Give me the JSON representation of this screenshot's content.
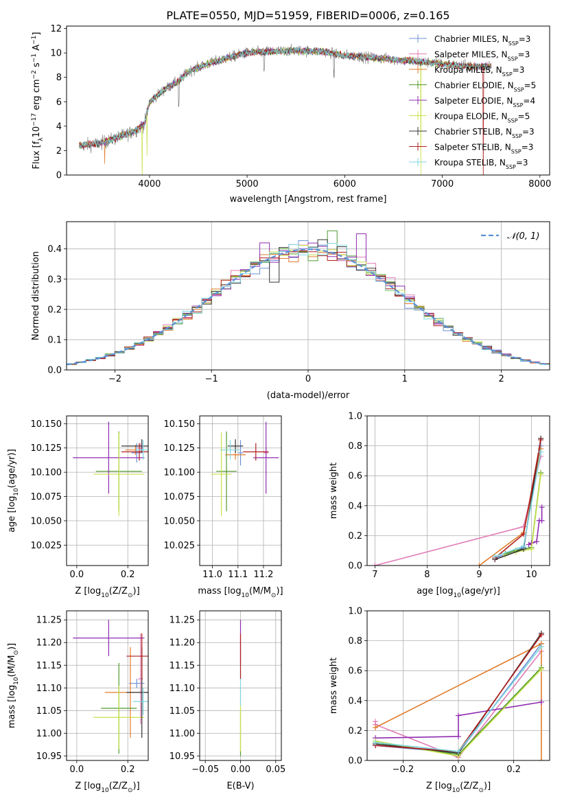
{
  "figure_title": "PLATE=0550, MJD=51959, FIBERID=0006, z=0.165",
  "palette": {
    "chabrier_miles": "#6b8fd6",
    "salpeter_miles": "#e07bb5",
    "kroupa_miles": "#e07b2a",
    "chabrier_elodie": "#4f9a2e",
    "salpeter_elodie": "#8e2bb0",
    "kroupa_elodie": "#c8e04a",
    "chabrier_stelib": "#333333",
    "salpeter_stelib": "#b01c1c",
    "kroupa_stelib": "#7fd6e0",
    "data": "#808080",
    "normal": "#5b8fd6",
    "grid": "#b0b0b0"
  },
  "chart_data": [
    {
      "id": "spectrum",
      "type": "line",
      "xlabel": "wavelength [Angstrom, rest frame]",
      "ylabel": "Flux [f_λ10^-17 erg cm^-2 s^-1 A^-1]",
      "xlim": [
        3150,
        8100
      ],
      "ylim": [
        0,
        12.2
      ],
      "xticks": [
        4000,
        5000,
        6000,
        7000,
        8000
      ],
      "yticks": [
        0,
        2,
        4,
        6,
        8,
        10,
        12
      ],
      "grid": false,
      "legend_position": "top-right",
      "legend": [
        {
          "main": "Chabrier MILES, N",
          "sub": "SSP",
          "tail": "=3",
          "color": "chabrier_miles"
        },
        {
          "main": "Salpeter MILES, N",
          "sub": "SSP",
          "tail": "=3",
          "color": "salpeter_miles"
        },
        {
          "main": "Kroupa MILES, N",
          "sub": "SSP",
          "tail": "=3",
          "color": "kroupa_miles"
        },
        {
          "main": "Chabrier ELODIE, N",
          "sub": "SSP",
          "tail": "=5",
          "color": "chabrier_elodie"
        },
        {
          "main": "Salpeter ELODIE, N",
          "sub": "SSP",
          "tail": "=4",
          "color": "salpeter_elodie"
        },
        {
          "main": "Kroupa ELODIE, N",
          "sub": "SSP",
          "tail": "=5",
          "color": "kroupa_elodie"
        },
        {
          "main": "Chabrier STELIB, N",
          "sub": "SSP",
          "tail": "=3",
          "color": "chabrier_stelib"
        },
        {
          "main": "Salpeter STELIB, N",
          "sub": "SSP",
          "tail": "=3",
          "color": "salpeter_stelib"
        },
        {
          "main": "Kroupa STELIB, N",
          "sub": "SSP",
          "tail": "=3",
          "color": "kroupa_stelib"
        }
      ],
      "continuum": {
        "x": [
          3280,
          3500,
          3650,
          3850,
          3950,
          4000,
          4150,
          4300,
          4400,
          4600,
          4800,
          5000,
          5200,
          5500,
          5800,
          6000,
          6300,
          6600,
          6900,
          7100,
          7300,
          7500
        ],
        "y": [
          2.4,
          2.6,
          3.0,
          3.6,
          4.2,
          6.0,
          7.0,
          7.7,
          8.5,
          9.1,
          9.6,
          10.0,
          10.1,
          10.2,
          10.1,
          9.8,
          9.6,
          9.4,
          9.2,
          9.0,
          8.9,
          8.9
        ]
      },
      "features": [
        {
          "x": 3540,
          "depth": 1.8,
          "model": "kroupa_miles"
        },
        {
          "x": 3925,
          "depth": 5.0,
          "model": "kroupa_elodie"
        },
        {
          "x": 3975,
          "depth": 3.5,
          "model": "kroupa_elodie"
        },
        {
          "x": 4300,
          "depth": 2.0
        },
        {
          "x": 5175,
          "depth": 1.5
        },
        {
          "x": 5890,
          "depth": 1.8
        },
        {
          "x": 6780,
          "depth": 9.8,
          "model": "kroupa_elodie"
        },
        {
          "x": 7420,
          "depth": 9.8,
          "model": "salpeter_stelib"
        }
      ]
    },
    {
      "id": "residuals",
      "type": "line",
      "xlabel": "(data-model)/error",
      "ylabel": "Normed distribution",
      "xlim": [
        -2.5,
        2.5
      ],
      "ylim": [
        0,
        0.49
      ],
      "xticks": [
        -2,
        -1,
        0,
        1,
        2
      ],
      "yticks": [
        0.0,
        0.1,
        0.2,
        0.3,
        0.4
      ],
      "grid": true,
      "legend_position": "top-right",
      "legend_label": "𝒩(0, 1)",
      "bin_width": 0.1,
      "series_order": [
        "chabrier_miles",
        "salpeter_miles",
        "kroupa_miles",
        "chabrier_elodie",
        "salpeter_elodie",
        "kroupa_elodie",
        "chabrier_stelib",
        "salpeter_stelib",
        "kroupa_stelib"
      ],
      "peak_bins": [
        {
          "x": -0.4,
          "y": 0.42,
          "color": "salpeter_elodie"
        },
        {
          "x": 0.3,
          "y": 0.46,
          "color": "chabrier_elodie"
        },
        {
          "x": 0.6,
          "y": 0.45,
          "color": "salpeter_elodie"
        },
        {
          "x": -0.3,
          "y": 0.29,
          "color": "chabrier_stelib"
        },
        {
          "x": 0.5,
          "y": 0.34,
          "color": "chabrier_miles"
        }
      ]
    },
    {
      "id": "z-age",
      "type": "scatter",
      "xlabel": "Z [log10(Z/Z⊙)]",
      "ylabel": "age [log10(age/yr)]",
      "xlim": [
        -0.04,
        0.28
      ],
      "ylim": [
        10.004,
        10.158
      ],
      "xticks": [
        0.0,
        0.2
      ],
      "yticks": [
        10.025,
        10.05,
        10.075,
        10.1,
        10.125,
        10.15
      ],
      "grid": true,
      "points": [
        {
          "model": "chabrier_miles",
          "x": 0.235,
          "xerr": 0.02,
          "y": 10.12,
          "yerr": 0.01
        },
        {
          "model": "salpeter_miles",
          "x": 0.25,
          "xerr": 0.01,
          "y": 10.125,
          "yerr": 0.005
        },
        {
          "model": "kroupa_miles",
          "x": 0.23,
          "xerr": 0.04,
          "y": 10.123,
          "yerr": 0.005
        },
        {
          "model": "chabrier_elodie",
          "x": 0.165,
          "xerr": 0.09,
          "y": 10.101,
          "yerr": 0.041
        },
        {
          "model": "salpeter_elodie",
          "x": 0.125,
          "xerr": 0.14,
          "y": 10.115,
          "yerr": 0.037
        },
        {
          "model": "kroupa_elodie",
          "x": 0.165,
          "xerr": 0.1,
          "y": 10.098,
          "yerr": 0.043
        },
        {
          "model": "chabrier_stelib",
          "x": 0.255,
          "xerr": 0.08,
          "y": 10.127,
          "yerr": 0.007
        },
        {
          "model": "salpeter_stelib",
          "x": 0.245,
          "xerr": 0.07,
          "y": 10.121,
          "yerr": 0.009
        },
        {
          "model": "kroupa_stelib",
          "x": 0.26,
          "xerr": 0.03,
          "y": 10.123,
          "yerr": 0.01
        }
      ]
    },
    {
      "id": "mass-age",
      "type": "scatter",
      "xlabel": "mass [log10(M/M⊙)]",
      "ylabel": "",
      "xlim": [
        10.95,
        11.27
      ],
      "ylim": [
        10.004,
        10.158
      ],
      "xticks": [
        11.0,
        11.1,
        11.2
      ],
      "yticks": [
        10.025,
        10.05,
        10.075,
        10.1,
        10.125,
        10.15
      ],
      "grid": true,
      "points": [
        {
          "model": "chabrier_miles",
          "x": 11.11,
          "xerr": 0.01,
          "y": 10.12,
          "yerr": 0.013
        },
        {
          "model": "salpeter_miles",
          "x": 11.21,
          "xerr": 0.01,
          "y": 10.12,
          "yerr": 0.005
        },
        {
          "model": "kroupa_miles",
          "x": 11.09,
          "xerr": 0.04,
          "y": 10.118,
          "yerr": 0.005
        },
        {
          "model": "chabrier_elodie",
          "x": 11.055,
          "xerr": 0.04,
          "y": 10.101,
          "yerr": 0.041
        },
        {
          "model": "salpeter_elodie",
          "x": 11.21,
          "xerr": 0.05,
          "y": 10.115,
          "yerr": 0.037
        },
        {
          "model": "kroupa_elodie",
          "x": 11.035,
          "xerr": 0.04,
          "y": 10.098,
          "yerr": 0.043
        },
        {
          "model": "chabrier_stelib",
          "x": 11.09,
          "xerr": 0.03,
          "y": 10.127,
          "yerr": 0.007
        },
        {
          "model": "salpeter_stelib",
          "x": 11.17,
          "xerr": 0.05,
          "y": 10.121,
          "yerr": 0.009
        },
        {
          "model": "kroupa_stelib",
          "x": 11.07,
          "xerr": 0.04,
          "y": 10.123,
          "yerr": 0.01
        }
      ]
    },
    {
      "id": "age-weight",
      "type": "line",
      "xlabel": "age [log10(age/yr)]",
      "ylabel": "mass weight",
      "xlim": [
        6.85,
        10.35
      ],
      "ylim": [
        0.0,
        1.0
      ],
      "xticks": [
        7,
        8,
        9,
        10
      ],
      "yticks": [
        0.0,
        0.2,
        0.4,
        0.6,
        0.8,
        1.0
      ],
      "grid": true,
      "series": [
        {
          "model": "chabrier_miles",
          "x": [
            9.3,
            9.85,
            10.18
          ],
          "y": [
            0.05,
            0.12,
            0.8
          ]
        },
        {
          "model": "salpeter_miles",
          "x": [
            7.0,
            9.85,
            10.18
          ],
          "y": [
            0.0,
            0.26,
            0.73
          ]
        },
        {
          "model": "kroupa_miles",
          "x": [
            9.0,
            9.85,
            10.18
          ],
          "y": [
            0.0,
            0.22,
            0.78
          ]
        },
        {
          "model": "chabrier_elodie",
          "x": [
            9.5,
            9.7,
            10.0,
            10.18
          ],
          "y": [
            0.08,
            0.1,
            0.12,
            0.62
          ]
        },
        {
          "model": "salpeter_elodie",
          "x": [
            9.95,
            10.0,
            10.1,
            10.15,
            10.2,
            10.2
          ],
          "y": [
            0.14,
            0.15,
            0.16,
            0.3,
            0.3,
            0.39
          ]
        },
        {
          "model": "kroupa_elodie",
          "x": [
            9.5,
            9.7,
            10.0,
            10.18
          ],
          "y": [
            0.07,
            0.09,
            0.11,
            0.61
          ]
        },
        {
          "model": "chabrier_stelib",
          "x": [
            9.3,
            9.85,
            10.18
          ],
          "y": [
            0.04,
            0.11,
            0.85
          ]
        },
        {
          "model": "salpeter_stelib",
          "x": [
            9.3,
            9.85,
            10.18
          ],
          "y": [
            0.05,
            0.21,
            0.84
          ]
        },
        {
          "model": "kroupa_stelib",
          "x": [
            9.3,
            9.85,
            10.18
          ],
          "y": [
            0.06,
            0.13,
            0.76
          ]
        }
      ]
    },
    {
      "id": "z-mass",
      "type": "scatter",
      "xlabel": "Z [log10(Z/Z⊙)]",
      "ylabel": "mass [log10(M/M⊙)]",
      "xlim": [
        -0.04,
        0.28
      ],
      "ylim": [
        10.94,
        11.27
      ],
      "xticks": [
        0.0,
        0.2
      ],
      "yticks": [
        10.95,
        11.0,
        11.05,
        11.1,
        11.15,
        11.2,
        11.25
      ],
      "grid": true,
      "points": [
        {
          "model": "chabrier_miles",
          "x": 0.235,
          "xerr": 0.03,
          "y": 11.11,
          "yerr": 0.01
        },
        {
          "model": "salpeter_miles",
          "x": 0.25,
          "xerr": 0.01,
          "y": 11.12,
          "yerr": 0.1
        },
        {
          "model": "kroupa_miles",
          "x": 0.21,
          "xerr": 0.1,
          "y": 11.09,
          "yerr": 0.1
        },
        {
          "model": "chabrier_elodie",
          "x": 0.165,
          "xerr": 0.07,
          "y": 11.055,
          "yerr": 0.1
        },
        {
          "model": "salpeter_elodie",
          "x": 0.125,
          "xerr": 0.14,
          "y": 11.21,
          "yerr": 0.04
        },
        {
          "model": "kroupa_elodie",
          "x": 0.165,
          "xerr": 0.1,
          "y": 11.035,
          "yerr": 0.07
        },
        {
          "model": "chabrier_stelib",
          "x": 0.255,
          "xerr": 0.06,
          "y": 11.09,
          "yerr": 0.1
        },
        {
          "model": "salpeter_stelib",
          "x": 0.255,
          "xerr": 0.06,
          "y": 11.17,
          "yerr": 0.05
        },
        {
          "model": "kroupa_stelib",
          "x": 0.26,
          "xerr": 0.04,
          "y": 11.07,
          "yerr": 0.03
        }
      ]
    },
    {
      "id": "ebv-mass",
      "type": "scatter",
      "xlabel": "E(B-V)",
      "ylabel": "",
      "xlim": [
        -0.058,
        0.058
      ],
      "ylim": [
        10.94,
        11.27
      ],
      "xticks": [
        -0.05,
        0.0,
        0.05
      ],
      "yticks": [
        10.95,
        11.0,
        11.05,
        11.1,
        11.15,
        11.2,
        11.25
      ],
      "grid": true,
      "points": [
        {
          "model": "chabrier_elodie",
          "x": 0.0,
          "xerr": 0.0,
          "y": 11.0,
          "yerr": 0.05
        },
        {
          "model": "kroupa_elodie",
          "x": 0.0,
          "xerr": 0.0,
          "y": 11.03,
          "yerr": 0.07
        },
        {
          "model": "kroupa_stelib",
          "x": 0.0,
          "xerr": 0.0,
          "y": 11.1,
          "yerr": 0.04
        },
        {
          "model": "salpeter_elodie",
          "x": 0.0,
          "xerr": 0.0,
          "y": 11.2,
          "yerr": 0.05
        },
        {
          "model": "salpeter_stelib",
          "x": 0.0,
          "xerr": 0.0,
          "y": 11.17,
          "yerr": 0.05
        }
      ]
    },
    {
      "id": "z-weight",
      "type": "line",
      "xlabel": "Z [log10(Z/Z⊙)]",
      "ylabel": "mass weight",
      "xlim": [
        -0.33,
        0.33
      ],
      "ylim": [
        0.0,
        1.0
      ],
      "xticks": [
        -0.2,
        0.0,
        0.2
      ],
      "yticks": [
        0.0,
        0.2,
        0.4,
        0.6,
        0.8,
        1.0
      ],
      "grid": true,
      "series": [
        {
          "model": "chabrier_miles",
          "x": [
            -0.3,
            0.0,
            0.3
          ],
          "y": [
            0.1,
            0.05,
            0.78
          ]
        },
        {
          "model": "salpeter_miles",
          "x": [
            -0.3,
            -0.3,
            0.0,
            0.3
          ],
          "y": [
            0.26,
            0.24,
            0.02,
            0.73
          ]
        },
        {
          "model": "kroupa_miles",
          "x": [
            -0.3,
            0.3,
            0.3,
            0.3
          ],
          "y": [
            0.22,
            0.78,
            0.0,
            0.78
          ]
        },
        {
          "model": "chabrier_elodie",
          "x": [
            -0.3,
            0.0,
            0.3
          ],
          "y": [
            0.12,
            0.04,
            0.62
          ]
        },
        {
          "model": "salpeter_elodie",
          "x": [
            -0.3,
            0.0,
            0.0,
            0.3
          ],
          "y": [
            0.15,
            0.16,
            0.3,
            0.39
          ]
        },
        {
          "model": "kroupa_elodie",
          "x": [
            -0.3,
            0.0,
            0.3
          ],
          "y": [
            0.13,
            0.03,
            0.61
          ]
        },
        {
          "model": "chabrier_stelib",
          "x": [
            -0.3,
            0.0,
            0.3
          ],
          "y": [
            0.11,
            0.05,
            0.85
          ]
        },
        {
          "model": "salpeter_stelib",
          "x": [
            -0.3,
            0.0,
            0.3
          ],
          "y": [
            0.1,
            0.06,
            0.84
          ]
        },
        {
          "model": "kroupa_stelib",
          "x": [
            -0.3,
            0.0,
            0.3
          ],
          "y": [
            0.12,
            0.06,
            0.76
          ]
        }
      ]
    }
  ]
}
